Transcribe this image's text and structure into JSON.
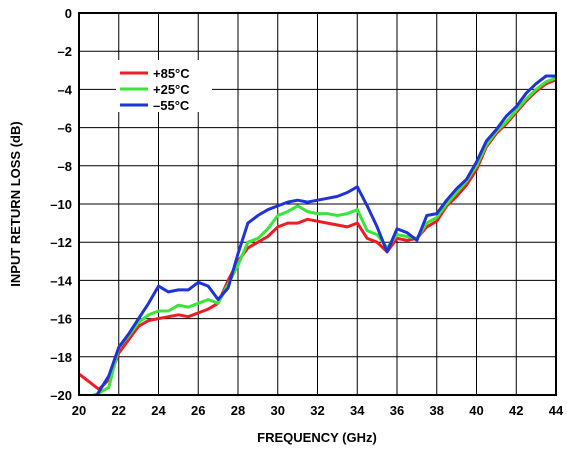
{
  "chart_data": {
    "type": "line",
    "title": "",
    "xlabel": "FREQUENCY (GHz)",
    "ylabel": "INPUT RETURN LOSS (dB)",
    "xlim": [
      20,
      44
    ],
    "ylim": [
      -20,
      0
    ],
    "x_ticks": [
      20,
      22,
      24,
      26,
      28,
      30,
      32,
      34,
      36,
      38,
      40,
      42,
      44
    ],
    "x_tick_labels": [
      "20",
      "22",
      "24",
      "26",
      "28",
      "30",
      "32",
      "34",
      "36",
      "38",
      "40",
      "42",
      "44"
    ],
    "y_ticks": [
      0,
      -2,
      -4,
      -6,
      -8,
      -10,
      -12,
      -14,
      -16,
      -18,
      -20
    ],
    "y_tick_labels": [
      "0",
      "–2",
      "–4",
      "–6",
      "–8",
      "–10",
      "–12",
      "–14",
      "–16",
      "–18",
      "–20"
    ],
    "grid": true,
    "legend_position": "top-left",
    "series": [
      {
        "name": "+85°C",
        "color": "#ee1c25",
        "points": [
          [
            20,
            -18.9
          ],
          [
            20.5,
            -19.3
          ],
          [
            21,
            -19.7
          ],
          [
            21.5,
            -19.2
          ],
          [
            22,
            -17.8
          ],
          [
            22.5,
            -17.1
          ],
          [
            23,
            -16.4
          ],
          [
            23.5,
            -16.1
          ],
          [
            24,
            -16.0
          ],
          [
            24.5,
            -15.9
          ],
          [
            25,
            -15.8
          ],
          [
            25.5,
            -15.9
          ],
          [
            26,
            -15.7
          ],
          [
            26.5,
            -15.5
          ],
          [
            27,
            -15.2
          ],
          [
            27.5,
            -14.0
          ],
          [
            28,
            -13.0
          ],
          [
            28.5,
            -12.3
          ],
          [
            29,
            -12.0
          ],
          [
            29.5,
            -11.7
          ],
          [
            30,
            -11.2
          ],
          [
            30.5,
            -11.0
          ],
          [
            31,
            -11.0
          ],
          [
            31.5,
            -10.8
          ],
          [
            32,
            -10.9
          ],
          [
            32.5,
            -11.0
          ],
          [
            33,
            -11.1
          ],
          [
            33.5,
            -11.2
          ],
          [
            34,
            -11.0
          ],
          [
            34.5,
            -11.8
          ],
          [
            35,
            -12.0
          ],
          [
            35.5,
            -12.5
          ],
          [
            36,
            -11.8
          ],
          [
            36.5,
            -11.9
          ],
          [
            37,
            -11.8
          ],
          [
            37.5,
            -11.2
          ],
          [
            38,
            -10.9
          ],
          [
            38.5,
            -10.1
          ],
          [
            39,
            -9.6
          ],
          [
            39.5,
            -9.0
          ],
          [
            40,
            -8.2
          ],
          [
            40.5,
            -7.0
          ],
          [
            41,
            -6.3
          ],
          [
            41.5,
            -5.8
          ],
          [
            42,
            -5.2
          ],
          [
            42.5,
            -4.6
          ],
          [
            43,
            -4.1
          ],
          [
            43.5,
            -3.7
          ],
          [
            44,
            -3.5
          ]
        ]
      },
      {
        "name": "+25°C",
        "color": "#3ae53a",
        "points": [
          [
            20,
            -20.0
          ],
          [
            20.5,
            -20.1
          ],
          [
            21,
            -19.9
          ],
          [
            21.5,
            -19.6
          ],
          [
            22,
            -17.5
          ],
          [
            22.5,
            -16.9
          ],
          [
            23,
            -16.2
          ],
          [
            23.5,
            -15.8
          ],
          [
            24,
            -15.6
          ],
          [
            24.5,
            -15.6
          ],
          [
            25,
            -15.3
          ],
          [
            25.5,
            -15.4
          ],
          [
            26,
            -15.2
          ],
          [
            26.5,
            -15.0
          ],
          [
            27,
            -15.2
          ],
          [
            27.5,
            -14.2
          ],
          [
            28,
            -13.2
          ],
          [
            28.5,
            -12.0
          ],
          [
            29,
            -11.8
          ],
          [
            29.5,
            -11.3
          ],
          [
            30,
            -10.6
          ],
          [
            30.5,
            -10.4
          ],
          [
            31,
            -10.1
          ],
          [
            31.5,
            -10.4
          ],
          [
            32,
            -10.5
          ],
          [
            32.5,
            -10.5
          ],
          [
            33,
            -10.6
          ],
          [
            33.5,
            -10.5
          ],
          [
            34,
            -10.3
          ],
          [
            34.5,
            -11.4
          ],
          [
            35,
            -11.6
          ],
          [
            35.5,
            -12.3
          ],
          [
            36,
            -11.6
          ],
          [
            36.5,
            -11.7
          ],
          [
            37,
            -11.8
          ],
          [
            37.5,
            -11.0
          ],
          [
            38,
            -10.7
          ],
          [
            38.5,
            -10.0
          ],
          [
            39,
            -9.4
          ],
          [
            39.5,
            -8.8
          ],
          [
            40,
            -8.0
          ],
          [
            40.5,
            -6.9
          ],
          [
            41,
            -6.2
          ],
          [
            41.5,
            -5.7
          ],
          [
            42,
            -5.1
          ],
          [
            42.5,
            -4.5
          ],
          [
            43,
            -4.0
          ],
          [
            43.5,
            -3.6
          ],
          [
            44,
            -3.4
          ]
        ]
      },
      {
        "name": "–55°C",
        "color": "#1f33d6",
        "points": [
          [
            20.9,
            -20.0
          ],
          [
            21.5,
            -19.0
          ],
          [
            22,
            -17.5
          ],
          [
            22.5,
            -16.8
          ],
          [
            23,
            -16.0
          ],
          [
            23.5,
            -15.2
          ],
          [
            24,
            -14.3
          ],
          [
            24.5,
            -14.6
          ],
          [
            25,
            -14.5
          ],
          [
            25.5,
            -14.5
          ],
          [
            26,
            -14.1
          ],
          [
            26.5,
            -14.3
          ],
          [
            27,
            -15.0
          ],
          [
            27.5,
            -14.4
          ],
          [
            28,
            -12.6
          ],
          [
            28.5,
            -11.0
          ],
          [
            29,
            -10.6
          ],
          [
            29.5,
            -10.3
          ],
          [
            30,
            -10.1
          ],
          [
            30.5,
            -9.9
          ],
          [
            31,
            -9.8
          ],
          [
            31.5,
            -9.9
          ],
          [
            32,
            -9.8
          ],
          [
            32.5,
            -9.7
          ],
          [
            33,
            -9.6
          ],
          [
            33.5,
            -9.4
          ],
          [
            34,
            -9.1
          ],
          [
            34.5,
            -10.1
          ],
          [
            35,
            -11.2
          ],
          [
            35.5,
            -12.5
          ],
          [
            36,
            -11.3
          ],
          [
            36.5,
            -11.5
          ],
          [
            37,
            -11.9
          ],
          [
            37.5,
            -10.6
          ],
          [
            38,
            -10.5
          ],
          [
            38.5,
            -9.8
          ],
          [
            39,
            -9.2
          ],
          [
            39.5,
            -8.7
          ],
          [
            40,
            -7.8
          ],
          [
            40.5,
            -6.7
          ],
          [
            41,
            -6.1
          ],
          [
            41.5,
            -5.4
          ],
          [
            42,
            -4.9
          ],
          [
            42.5,
            -4.2
          ],
          [
            43,
            -3.7
          ],
          [
            43.5,
            -3.3
          ],
          [
            44,
            -3.3
          ]
        ]
      }
    ]
  }
}
